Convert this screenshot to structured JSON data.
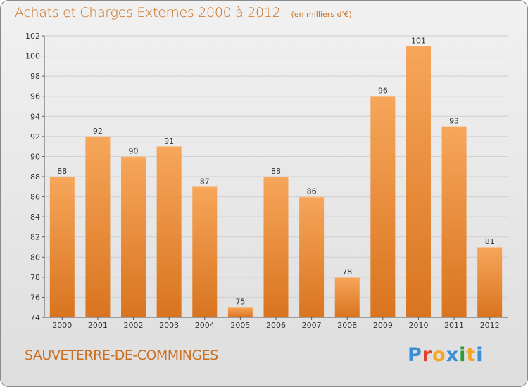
{
  "header": {
    "title": "Achats et Charges Externes 2000 à 2012",
    "subtitle": "(en milliers d'€)"
  },
  "footer": {
    "commune": "SAUVETERRE-DE-COMMINGES",
    "logo": "Proxiti",
    "logo_colors": [
      "#3a8fd6",
      "#e0442a",
      "#f5a623",
      "#3a8fd6",
      "#2e9c3a",
      "#f5a623",
      "#3a8fd6"
    ]
  },
  "colors": {
    "bar_top": "#f6a65a",
    "bar_bottom": "#d9741f",
    "bar_edge": "#f8c390",
    "title": "#cc6f1f",
    "grid": "#cfcfcf",
    "text": "#333333"
  },
  "chart_data": {
    "type": "bar",
    "categories": [
      "2000",
      "2001",
      "2002",
      "2003",
      "2004",
      "2005",
      "2006",
      "2007",
      "2008",
      "2009",
      "2010",
      "2011",
      "2012"
    ],
    "values": [
      88,
      92,
      90,
      91,
      87,
      75,
      88,
      86,
      78,
      96,
      101,
      93,
      81
    ],
    "data_labels": [
      "88",
      "92",
      "90",
      "91",
      "87",
      "75",
      "88",
      "86",
      "78",
      "96",
      "101",
      "93",
      "81"
    ],
    "yticks": [
      74,
      76,
      78,
      80,
      82,
      84,
      86,
      88,
      90,
      92,
      94,
      96,
      98,
      100,
      102
    ],
    "ylim": [
      74,
      102
    ],
    "grid": true,
    "legend": "none"
  }
}
